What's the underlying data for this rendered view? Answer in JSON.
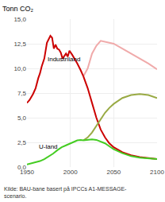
{
  "chart_data": {
    "type": "line",
    "title": "Tonn CO₂",
    "source": "Kilde: BAU-bane basert på IPCCs A1-MESSAGE-\nscenario.",
    "xlim": [
      1950,
      2100
    ],
    "xticks": [
      1950,
      2000,
      2050,
      2100
    ],
    "ylim": [
      0,
      15
    ],
    "yticks": [
      {
        "value": 0,
        "label": "0,0"
      },
      {
        "value": 2.5,
        "label": "2,5"
      },
      {
        "value": 5.0,
        "label": "5,0"
      },
      {
        "value": 7.5,
        "label": "7,5"
      },
      {
        "value": 10.0,
        "label": "10,0"
      },
      {
        "value": 12.5,
        "label": "12,5"
      },
      {
        "value": 15.0,
        "label": "15,0"
      }
    ],
    "grid": true,
    "series": [
      {
        "color": "#f0aaaa",
        "x": [
          2015,
          2020,
          2025,
          2030,
          2035,
          2040,
          2045,
          2050,
          2060,
          2070,
          2080,
          2090,
          2100
        ],
        "values": [
          9.2,
          10.0,
          11.5,
          12.3,
          12.8,
          12.7,
          12.6,
          12.5,
          12.0,
          11.5,
          11.0,
          10.5,
          9.9
        ]
      },
      {
        "color": "#cc0000",
        "x": [
          2015,
          2020,
          2025,
          2030,
          2035,
          2040,
          2045,
          2050,
          2060,
          2070,
          2080,
          2090,
          2100
        ],
        "values": [
          9.2,
          8.0,
          6.5,
          5.0,
          3.8,
          3.0,
          2.4,
          2.0,
          1.5,
          1.2,
          1.0,
          0.9,
          0.8
        ]
      },
      {
        "color": "#cc0000",
        "x": [
          1950,
          1953,
          1957,
          1960,
          1963,
          1965,
          1967,
          1970,
          1973,
          1975,
          1977,
          1979,
          1981,
          1983,
          1985,
          1987,
          1989,
          1991,
          1993,
          1995,
          1997,
          1999,
          2002,
          2005,
          2008,
          2012,
          2015
        ],
        "values": [
          6.5,
          6.8,
          7.4,
          8.0,
          9.0,
          9.5,
          10.2,
          11.0,
          12.6,
          13.0,
          13.3,
          13.1,
          12.0,
          12.4,
          12.0,
          11.9,
          11.6,
          11.0,
          11.3,
          11.5,
          11.2,
          11.8,
          11.4,
          11.0,
          10.5,
          9.8,
          9.2
        ]
      },
      {
        "color": "#99aa44",
        "x": [
          2015,
          2020,
          2025,
          2030,
          2035,
          2040,
          2045,
          2050,
          2060,
          2070,
          2080,
          2090,
          2100
        ],
        "values": [
          2.7,
          3.0,
          3.5,
          4.2,
          4.9,
          5.5,
          6.0,
          6.4,
          7.0,
          7.3,
          7.4,
          7.3,
          7.0
        ]
      },
      {
        "color": "#44cc22",
        "x": [
          2015,
          2020,
          2025,
          2030,
          2035,
          2040,
          2045,
          2050,
          2060,
          2070,
          2080,
          2090,
          2100
        ],
        "values": [
          2.7,
          2.75,
          2.8,
          2.75,
          2.6,
          2.4,
          2.1,
          1.8,
          1.4,
          1.1,
          0.95,
          0.85,
          0.8
        ]
      },
      {
        "color": "#44cc22",
        "x": [
          1950,
          1955,
          1960,
          1965,
          1970,
          1975,
          1980,
          1985,
          1990,
          1995,
          2000,
          2005,
          2008,
          2012,
          2015
        ],
        "values": [
          0.25,
          0.35,
          0.45,
          0.6,
          0.8,
          1.05,
          1.35,
          1.7,
          2.0,
          2.2,
          2.4,
          2.6,
          2.7,
          2.75,
          2.7
        ]
      }
    ],
    "annotations": [
      {
        "text": "Industriland",
        "x": 1972,
        "y": 10.4
      },
      {
        "text": "U-land",
        "x": 1962,
        "y": 1.5
      }
    ]
  }
}
